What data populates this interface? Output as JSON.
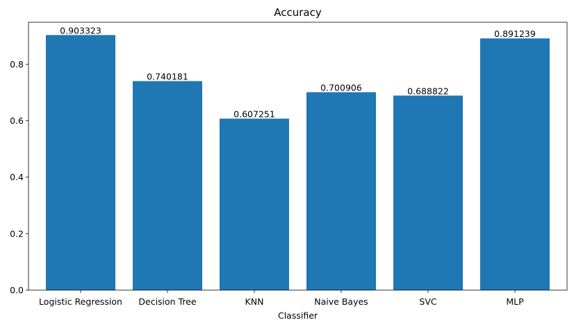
{
  "chart_data": {
    "type": "bar",
    "title": "Accuracy",
    "xlabel": "Classifier",
    "ylabel": "",
    "categories": [
      "Logistic Regression",
      "Decision Tree",
      "KNN",
      "Naive Bayes",
      "SVC",
      "MLP"
    ],
    "values": [
      0.903323,
      0.740181,
      0.607251,
      0.700906,
      0.688822,
      0.891239
    ],
    "data_labels": [
      "0.903323",
      "0.740181",
      "0.607251",
      "0.700906",
      "0.688822",
      "0.891239"
    ],
    "ylim": [
      0,
      0.9485
    ],
    "yticks": [
      0.0,
      0.2,
      0.4,
      0.6,
      0.8
    ],
    "ytick_labels": [
      "0.0",
      "0.2",
      "0.4",
      "0.6",
      "0.8"
    ],
    "bar_color": "#1f77b4",
    "grid": false,
    "legend": "none"
  }
}
